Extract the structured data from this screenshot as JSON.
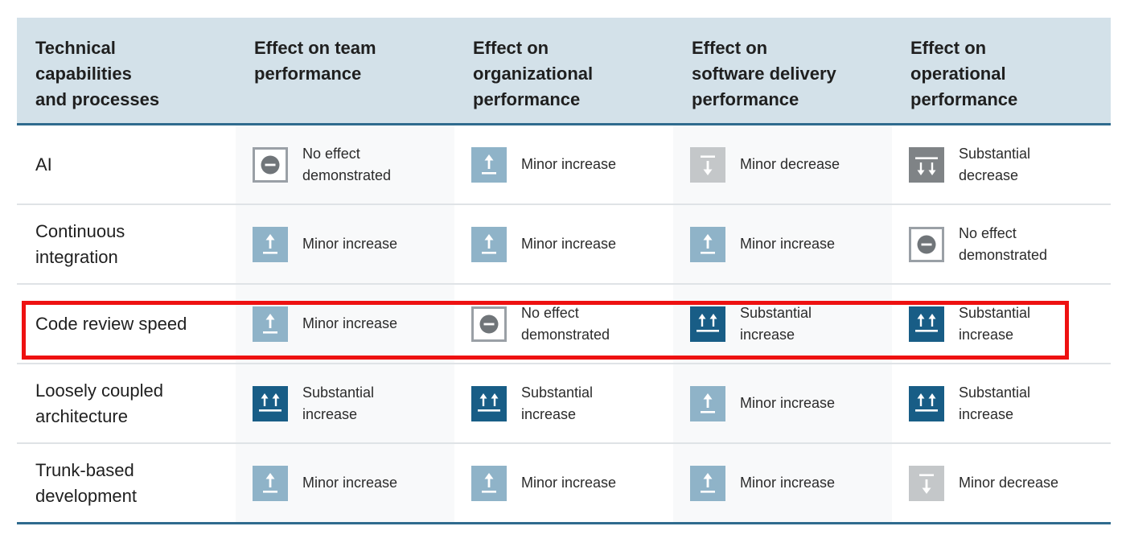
{
  "header": {
    "col0": [
      "Technical",
      "capabilities",
      "and processes"
    ],
    "col1": [
      "Effect on team",
      "performance"
    ],
    "col2": [
      "Effect on",
      "organizational",
      "performance"
    ],
    "col3": [
      "Effect on",
      "software delivery",
      "performance"
    ],
    "col4": [
      "Effect on",
      "operational",
      "performance"
    ]
  },
  "colors": {
    "minor_increase": "#8fb3c8",
    "substantial_increase": "#185d86",
    "minor_decrease": "#c4c7c9",
    "substantial_decrease": "#7f8386",
    "no_effect": "#9aa0a6",
    "highlight": "#ee1111"
  },
  "rows": [
    {
      "label": [
        "AI"
      ],
      "cells": [
        {
          "icon": "no-effect-icon",
          "text": [
            "No effect",
            "demonstrated"
          ]
        },
        {
          "icon": "minor-increase-icon",
          "text": [
            "Minor increase"
          ]
        },
        {
          "icon": "minor-decrease-icon",
          "text": [
            "Minor decrease"
          ]
        },
        {
          "icon": "substantial-decrease-icon",
          "text": [
            "Substantial",
            "decrease"
          ]
        }
      ]
    },
    {
      "label": [
        "Continuous",
        "integration"
      ],
      "cells": [
        {
          "icon": "minor-increase-icon",
          "text": [
            "Minor increase"
          ]
        },
        {
          "icon": "minor-increase-icon",
          "text": [
            "Minor increase"
          ]
        },
        {
          "icon": "minor-increase-icon",
          "text": [
            "Minor increase"
          ]
        },
        {
          "icon": "no-effect-icon",
          "text": [
            "No effect",
            "demonstrated"
          ]
        }
      ]
    },
    {
      "label": [
        "Code review speed"
      ],
      "highlighted": true,
      "cells": [
        {
          "icon": "minor-increase-icon",
          "text": [
            "Minor increase"
          ]
        },
        {
          "icon": "no-effect-icon",
          "text": [
            "No effect",
            "demonstrated"
          ]
        },
        {
          "icon": "substantial-increase-icon",
          "text": [
            "Substantial",
            "increase"
          ]
        },
        {
          "icon": "substantial-increase-icon",
          "text": [
            "Substantial",
            "increase"
          ]
        }
      ]
    },
    {
      "label": [
        "Loosely coupled",
        "architecture"
      ],
      "cells": [
        {
          "icon": "substantial-increase-icon",
          "text": [
            "Substantial",
            "increase"
          ]
        },
        {
          "icon": "substantial-increase-icon",
          "text": [
            "Substantial",
            "increase"
          ]
        },
        {
          "icon": "minor-increase-icon",
          "text": [
            "Minor increase"
          ]
        },
        {
          "icon": "substantial-increase-icon",
          "text": [
            "Substantial",
            "increase"
          ]
        }
      ]
    },
    {
      "label": [
        "Trunk-based",
        "development"
      ],
      "cells": [
        {
          "icon": "minor-increase-icon",
          "text": [
            "Minor increase"
          ]
        },
        {
          "icon": "minor-increase-icon",
          "text": [
            "Minor increase"
          ]
        },
        {
          "icon": "minor-increase-icon",
          "text": [
            "Minor increase"
          ]
        },
        {
          "icon": "minor-decrease-icon",
          "text": [
            "Minor decrease"
          ]
        }
      ]
    }
  ]
}
